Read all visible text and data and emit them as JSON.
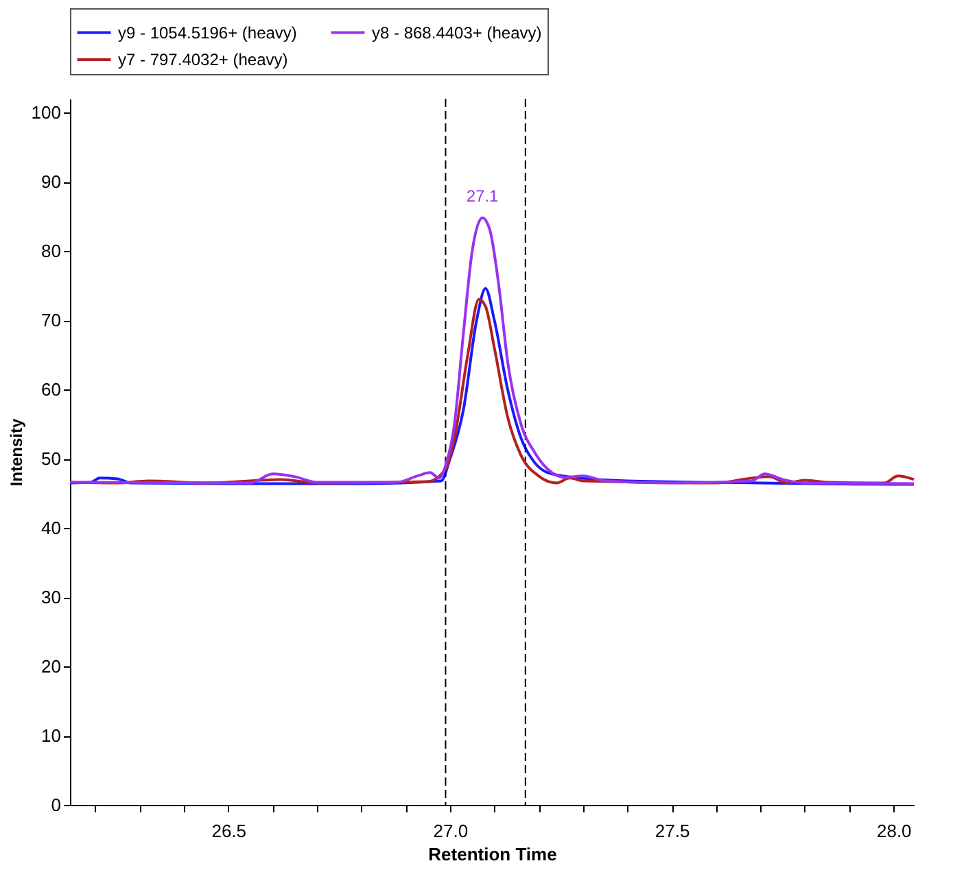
{
  "chart_data": {
    "type": "line",
    "xlabel": "Retention Time",
    "ylabel": "Intensity",
    "xlim": [
      26.143,
      28.046
    ],
    "ylim": [
      0,
      102
    ],
    "xticks": [
      {
        "value": 26.2,
        "label": null
      },
      {
        "value": 26.3,
        "label": null
      },
      {
        "value": 26.4,
        "label": null
      },
      26.5,
      {
        "value": 26.6,
        "label": null
      },
      {
        "value": 26.7,
        "label": null
      },
      {
        "value": 26.8,
        "label": null
      },
      {
        "value": 26.9,
        "label": null
      },
      {
        "value": 27,
        "label": "27.0"
      },
      {
        "value": 27.1,
        "label": null
      },
      {
        "value": 27.2,
        "label": null
      },
      {
        "value": 27.3,
        "label": null
      },
      {
        "value": 27.4,
        "label": null
      },
      27.5,
      {
        "value": 27.6,
        "label": null
      },
      {
        "value": 27.7,
        "label": null
      },
      {
        "value": 27.8,
        "label": null
      },
      {
        "value": 27.9,
        "label": null
      },
      {
        "value": 28,
        "label": "28.0"
      }
    ],
    "yticks": [
      0,
      10,
      20,
      30,
      40,
      50,
      60,
      70,
      80,
      90,
      100
    ],
    "grid": false,
    "legend": "top",
    "line_style": "solid",
    "marker": "none",
    "ref_lines": [
      {
        "axis": "x",
        "value": 26.99,
        "label": null,
        "color": "#000000",
        "line_style": "dashed"
      },
      {
        "axis": "x",
        "value": 27.17,
        "label": null,
        "color": "#000000",
        "line_style": "dashed"
      }
    ],
    "annotations": [
      "27.1"
    ],
    "series": [
      {
        "name": "y9 - 1054.5196+ (heavy)",
        "color": "#1a1aff",
        "x": [
          26.143,
          26.19,
          26.21,
          26.25,
          26.28,
          26.5,
          26.8,
          26.98,
          27.0,
          27.03,
          27.06,
          27.08,
          27.1,
          27.13,
          27.16,
          27.19,
          27.22,
          27.28,
          27.4,
          27.7,
          28.0,
          28.046
        ],
        "values": [
          46.5,
          46.6,
          47.2,
          47.1,
          46.5,
          46.4,
          46.4,
          46.8,
          50,
          57,
          70,
          74.6,
          70,
          60,
          53,
          49.5,
          48,
          47.3,
          46.8,
          46.5,
          46.3,
          46.3
        ]
      },
      {
        "name": "y8 - 868.4403+ (heavy)",
        "color": "#9933ee",
        "x": [
          26.143,
          26.55,
          26.6,
          26.65,
          26.7,
          26.88,
          26.93,
          26.955,
          26.975,
          26.99,
          27.01,
          27.03,
          27.05,
          27.073,
          27.09,
          27.11,
          27.13,
          27.16,
          27.19,
          27.22,
          27.26,
          27.3,
          27.35,
          27.5,
          27.68,
          27.71,
          27.75,
          27.8,
          28.046
        ],
        "values": [
          46.6,
          46.5,
          47.8,
          47.4,
          46.6,
          46.6,
          47.6,
          48,
          47.2,
          49,
          55,
          68,
          80,
          84.8,
          83,
          75,
          64,
          55,
          51,
          48.5,
          47.3,
          47.5,
          46.8,
          46.5,
          46.8,
          47.8,
          47,
          46.5,
          46.4
        ]
      },
      {
        "name": "y7 - 797.4032+ (heavy)",
        "color": "#b22222",
        "x": [
          26.143,
          26.25,
          26.32,
          26.45,
          26.62,
          26.7,
          26.95,
          26.99,
          27.01,
          27.04,
          27.065,
          27.08,
          27.1,
          27.13,
          27.16,
          27.2,
          27.24,
          27.27,
          27.3,
          27.6,
          27.68,
          27.72,
          27.76,
          27.8,
          27.85,
          27.98,
          28.01,
          28.046
        ],
        "values": [
          46.6,
          46.5,
          46.8,
          46.5,
          47,
          46.5,
          46.7,
          48.5,
          53,
          65,
          73,
          72,
          66,
          56,
          50.5,
          47.5,
          46.5,
          47.2,
          46.8,
          46.5,
          47.2,
          47.4,
          46.5,
          46.9,
          46.6,
          46.5,
          47.5,
          47
        ]
      }
    ]
  }
}
